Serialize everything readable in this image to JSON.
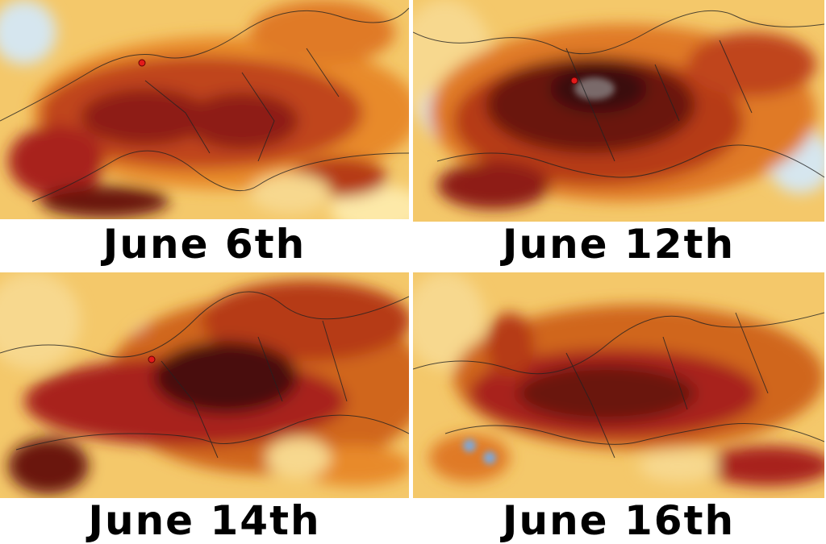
{
  "panels": [
    {
      "caption": "June 6th"
    },
    {
      "caption": "June 12th"
    },
    {
      "caption": "June 14th"
    },
    {
      "caption": "June 16th"
    }
  ]
}
